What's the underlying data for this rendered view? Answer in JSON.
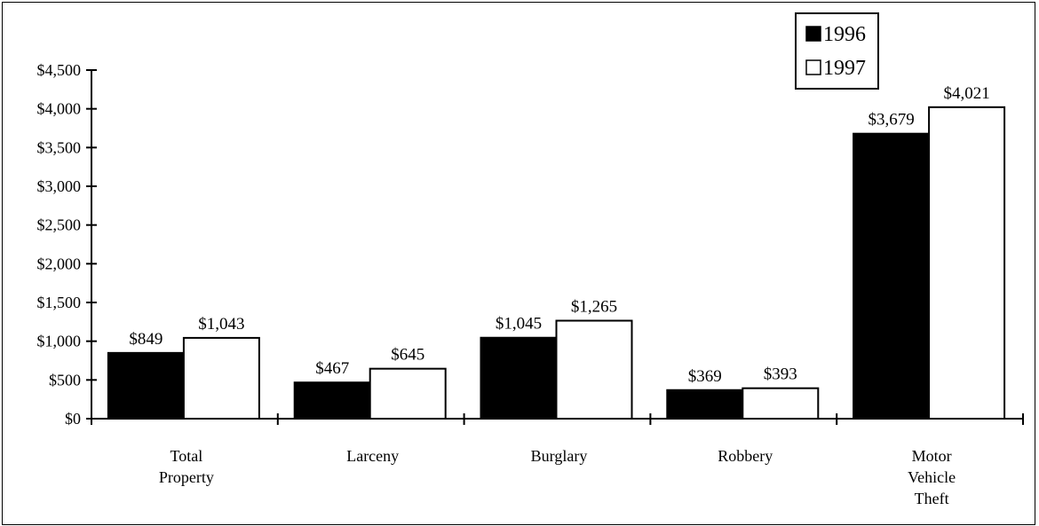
{
  "chart_data": {
    "type": "bar",
    "categories": [
      [
        "Total",
        "Property"
      ],
      [
        "Larceny"
      ],
      [
        "Burglary"
      ],
      [
        "Robbery"
      ],
      [
        "Motor",
        "Vehicle",
        "Theft"
      ]
    ],
    "series": [
      {
        "name": "1996",
        "color": "#000000",
        "values": [
          849,
          467,
          1045,
          369,
          3679
        ],
        "labels": [
          "$849",
          "$467",
          "$1,045",
          "$369",
          "$3,679"
        ]
      },
      {
        "name": "1997",
        "color": "#ffffff",
        "values": [
          1043,
          645,
          1265,
          393,
          4021
        ],
        "labels": [
          "$1,043",
          "$645",
          "$1,265",
          "$393",
          "$4,021"
        ]
      }
    ],
    "ylim": [
      0,
      4500
    ],
    "yticks": [
      0,
      500,
      1000,
      1500,
      2000,
      2500,
      3000,
      3500,
      4000,
      4500
    ],
    "ytick_labels": [
      "$0",
      "$500",
      "$1,000",
      "$1,500",
      "$2,000",
      "$2,500",
      "$3,000",
      "$3,500",
      "$4,000",
      "$4,500"
    ],
    "title": "",
    "xlabel": "",
    "ylabel": "",
    "grid": false,
    "legend": "top-right"
  }
}
